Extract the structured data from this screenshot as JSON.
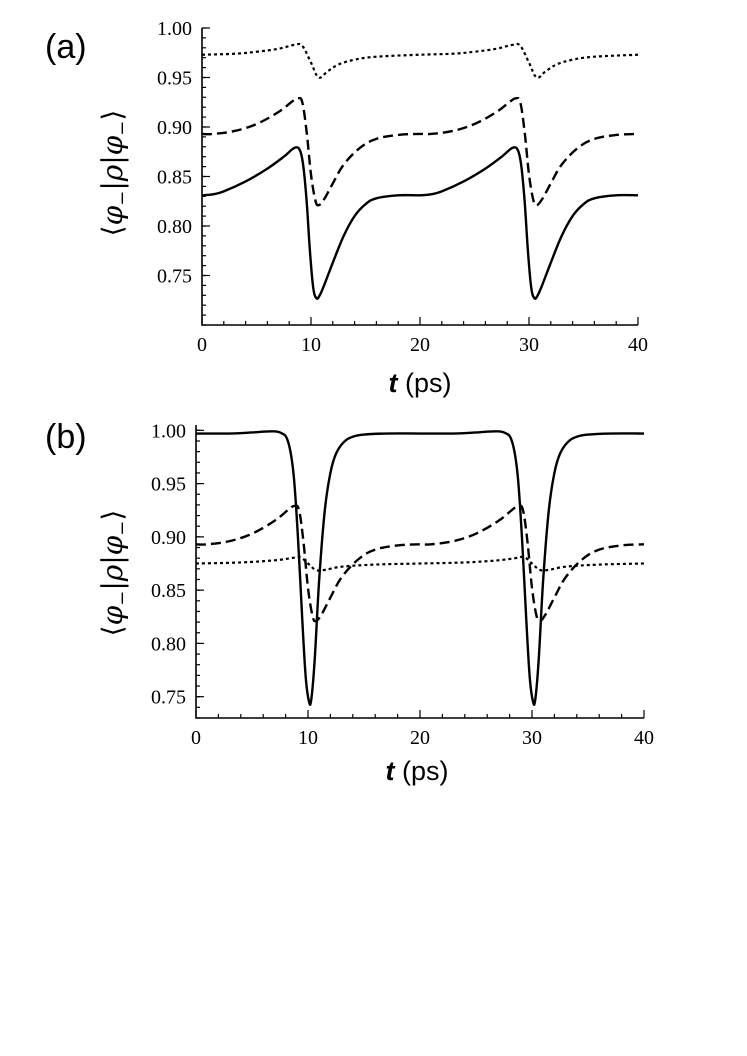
{
  "chart_data": [
    {
      "type": "line",
      "panel_label": "(a)",
      "xlabel": {
        "var": "t",
        "unit": " (ps)"
      },
      "ylabel": {
        "open": "⟨",
        "phi1": "φ",
        "sub1": "−",
        "bar1": "|",
        "rho": "ρ",
        "bar2": "|",
        "phi2": "φ",
        "sub2": "−",
        "close": "⟩"
      },
      "xlim": [
        0,
        40
      ],
      "ylim": [
        0.7,
        1.0
      ],
      "xticks": [
        "0",
        "10",
        "20",
        "30",
        "40"
      ],
      "yticks": [
        "0.75",
        "0.80",
        "0.85",
        "0.90",
        "0.95",
        "1.00"
      ],
      "grid": false,
      "series": [
        {
          "style": "dotted",
          "x": [
            0,
            3,
            5,
            7,
            8.5,
            9.2,
            10,
            10.7,
            11.5,
            12.5,
            14,
            16,
            20,
            23,
            25,
            27,
            28.5,
            29.2,
            30,
            30.7,
            31.5,
            32.5,
            34,
            36,
            40
          ],
          "y": [
            0.973,
            0.974,
            0.976,
            0.979,
            0.983,
            0.982,
            0.965,
            0.95,
            0.956,
            0.963,
            0.968,
            0.971,
            0.973,
            0.974,
            0.976,
            0.979,
            0.983,
            0.982,
            0.965,
            0.95,
            0.956,
            0.963,
            0.968,
            0.971,
            0.973
          ]
        },
        {
          "style": "dashed",
          "x": [
            0,
            1,
            3,
            5,
            7,
            8.3,
            8.8,
            9.2,
            9.6,
            10.0,
            10.4,
            10.7,
            11.2,
            12,
            13,
            14.5,
            16,
            18,
            20,
            21,
            23,
            25,
            27,
            28.3,
            28.8,
            29.2,
            29.6,
            30.0,
            30.4,
            30.7,
            31.2,
            32,
            33,
            34.5,
            36,
            38,
            40
          ],
          "y": [
            0.893,
            0.893,
            0.896,
            0.903,
            0.915,
            0.926,
            0.929,
            0.925,
            0.895,
            0.852,
            0.826,
            0.821,
            0.827,
            0.843,
            0.862,
            0.879,
            0.888,
            0.892,
            0.893,
            0.893,
            0.896,
            0.903,
            0.915,
            0.926,
            0.929,
            0.925,
            0.895,
            0.852,
            0.826,
            0.821,
            0.827,
            0.843,
            0.862,
            0.879,
            0.888,
            0.892,
            0.893
          ]
        },
        {
          "style": "solid",
          "x": [
            0,
            1,
            2,
            4,
            6,
            7.5,
            8.5,
            9.0,
            9.3,
            9.6,
            9.9,
            10.2,
            10.5,
            10.8,
            11.2,
            12,
            13,
            14,
            15,
            16,
            18,
            20,
            21,
            22,
            24,
            26,
            27.5,
            28.5,
            29.0,
            29.3,
            29.6,
            29.9,
            30.2,
            30.5,
            30.8,
            31.2,
            32,
            33,
            34,
            35,
            36,
            38,
            40
          ],
          "y": [
            0.831,
            0.832,
            0.835,
            0.845,
            0.858,
            0.87,
            0.879,
            0.876,
            0.86,
            0.825,
            0.775,
            0.738,
            0.727,
            0.73,
            0.74,
            0.763,
            0.79,
            0.81,
            0.822,
            0.828,
            0.831,
            0.831,
            0.832,
            0.835,
            0.845,
            0.858,
            0.87,
            0.879,
            0.876,
            0.86,
            0.825,
            0.775,
            0.738,
            0.727,
            0.73,
            0.74,
            0.763,
            0.79,
            0.81,
            0.822,
            0.828,
            0.831,
            0.831
          ]
        }
      ]
    },
    {
      "type": "line",
      "panel_label": "(b)",
      "xlabel": {
        "var": "t",
        "unit": " (ps)"
      },
      "ylabel": {
        "open": "⟨",
        "phi1": "φ",
        "sub1": "−",
        "bar1": "|",
        "rho": "ρ",
        "bar2": "|",
        "phi2": "φ",
        "sub2": "−",
        "close": "⟩"
      },
      "xlim": [
        0,
        40
      ],
      "ylim": [
        0.73,
        1.005
      ],
      "xticks": [
        "0",
        "10",
        "20",
        "30",
        "40"
      ],
      "yticks": [
        "0.75",
        "0.80",
        "0.85",
        "0.90",
        "0.95",
        "1.00"
      ],
      "grid": false,
      "series": [
        {
          "style": "solid",
          "x": [
            0,
            3,
            5,
            6.5,
            7.5,
            8.2,
            8.7,
            9.1,
            9.5,
            9.8,
            10.1,
            10.3,
            10.6,
            11.0,
            11.5,
            12.0,
            12.5,
            13.2,
            14,
            15,
            17,
            20,
            23,
            25,
            26.5,
            27.5,
            28.2,
            28.7,
            29.1,
            29.5,
            29.8,
            30.1,
            30.3,
            30.6,
            31.0,
            31.5,
            32.0,
            32.5,
            33.2,
            34,
            35,
            37,
            40
          ],
          "y": [
            0.997,
            0.997,
            0.998,
            0.999,
            0.998,
            0.99,
            0.96,
            0.9,
            0.82,
            0.768,
            0.745,
            0.748,
            0.785,
            0.86,
            0.925,
            0.96,
            0.978,
            0.989,
            0.994,
            0.996,
            0.997,
            0.997,
            0.997,
            0.998,
            0.999,
            0.998,
            0.99,
            0.96,
            0.9,
            0.82,
            0.768,
            0.745,
            0.748,
            0.785,
            0.86,
            0.925,
            0.96,
            0.978,
            0.989,
            0.994,
            0.996,
            0.997,
            0.997
          ]
        },
        {
          "style": "dashed",
          "x": [
            0,
            1,
            3,
            5,
            7,
            8.3,
            8.8,
            9.2,
            9.6,
            10.0,
            10.4,
            10.7,
            11.2,
            12,
            13,
            14.5,
            16,
            18,
            20,
            21,
            23,
            25,
            27,
            28.3,
            28.8,
            29.2,
            29.6,
            30.0,
            30.4,
            30.7,
            31.2,
            32,
            33,
            34.5,
            36,
            38,
            40
          ],
          "y": [
            0.893,
            0.893,
            0.896,
            0.903,
            0.915,
            0.926,
            0.929,
            0.925,
            0.895,
            0.852,
            0.826,
            0.821,
            0.827,
            0.843,
            0.862,
            0.879,
            0.888,
            0.892,
            0.893,
            0.893,
            0.896,
            0.903,
            0.915,
            0.926,
            0.929,
            0.925,
            0.895,
            0.852,
            0.826,
            0.821,
            0.827,
            0.843,
            0.862,
            0.879,
            0.888,
            0.892,
            0.893
          ]
        },
        {
          "style": "dotted",
          "x": [
            0,
            4,
            7,
            8.5,
            9.3,
            10,
            10.7,
            11.5,
            13,
            16,
            20,
            24,
            27,
            28.5,
            29.3,
            30,
            30.7,
            31.5,
            33,
            36,
            40
          ],
          "y": [
            0.875,
            0.876,
            0.878,
            0.88,
            0.881,
            0.875,
            0.869,
            0.869,
            0.872,
            0.874,
            0.875,
            0.876,
            0.878,
            0.88,
            0.881,
            0.875,
            0.869,
            0.869,
            0.872,
            0.874,
            0.875
          ]
        }
      ]
    }
  ]
}
